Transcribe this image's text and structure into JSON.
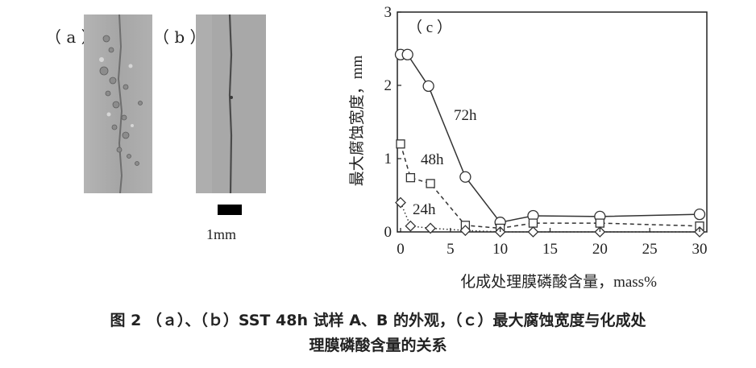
{
  "panel_a": {
    "label": "（ a ）"
  },
  "panel_b": {
    "label": "（ b ）"
  },
  "scale_bar": {
    "label": "1mm"
  },
  "chart_data": {
    "type": "line",
    "panel_label": "（ c ）",
    "xlabel": "化成处理膜磷酸含量，mass%",
    "ylabel": "最大腐蚀宽度，mm",
    "xlim": [
      0,
      30
    ],
    "ylim": [
      0,
      3
    ],
    "xticks": [
      0,
      5,
      10,
      15,
      20,
      25,
      30
    ],
    "yticks": [
      0,
      1,
      2,
      3
    ],
    "grid": false,
    "series": [
      {
        "name": "72h",
        "marker": "circle",
        "line": "solid",
        "x": [
          0,
          0.7,
          2.8,
          6.5,
          10,
          13.3,
          20,
          30
        ],
        "y": [
          2.42,
          2.42,
          1.99,
          0.75,
          0.13,
          0.22,
          0.21,
          0.24
        ]
      },
      {
        "name": "48h",
        "marker": "square",
        "line": "dashed",
        "x": [
          0,
          1,
          3,
          6.5,
          10,
          13.3,
          20,
          30
        ],
        "y": [
          1.2,
          0.74,
          0.66,
          0.09,
          0.05,
          0.12,
          0.12,
          0.08
        ]
      },
      {
        "name": "24h",
        "marker": "diamond",
        "line": "dotted",
        "x": [
          0,
          1,
          3,
          6.5,
          10,
          13.3,
          20,
          30
        ],
        "y": [
          0.4,
          0.08,
          0.05,
          0.02,
          0.0,
          0.0,
          0.0,
          0.0
        ]
      }
    ]
  },
  "caption": {
    "line1": "图 2  （ａ）、（ｂ）SST 48h 试样 A、B 的外观，（ｃ）最大腐蚀宽度与化成处",
    "line2": "理膜磷酸含量的关系"
  }
}
